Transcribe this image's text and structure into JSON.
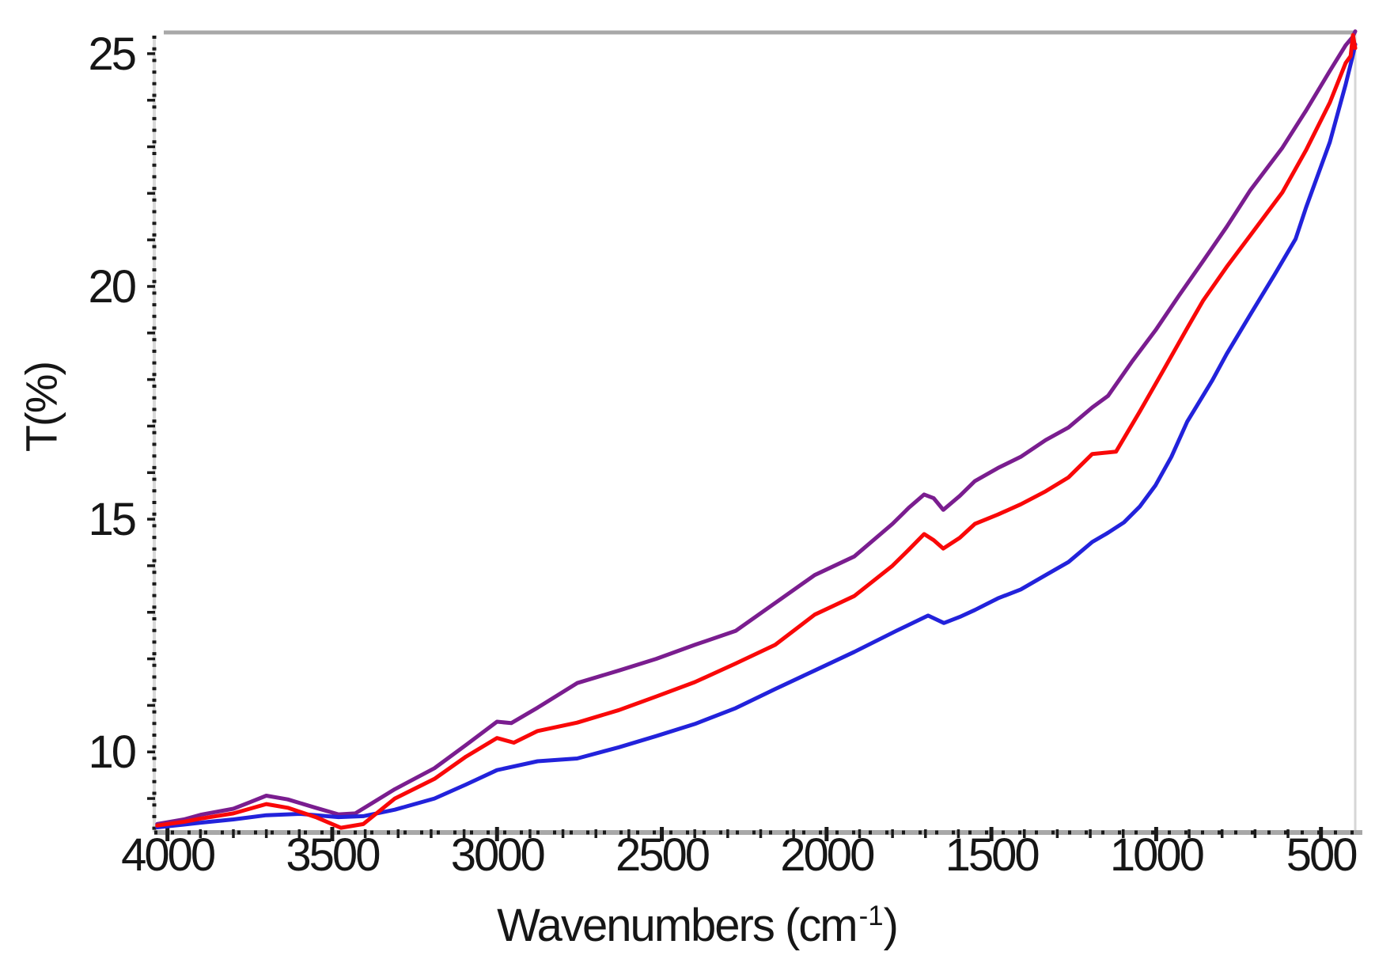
{
  "figure": {
    "x_axis_title": {
      "main": "Wavenumbers (cm",
      "sup": "-1",
      "end": ")"
    },
    "y_axis_title": "T(%)"
  },
  "chart_data": {
    "type": "line",
    "title": "",
    "xlabel": "Wavenumbers (cm⁻¹)",
    "ylabel": "T(%)",
    "legend": "none",
    "grid": false,
    "x_axis": {
      "min": 396,
      "max": 4040,
      "reversed": true,
      "major_ticks": [
        4000,
        3500,
        3000,
        2500,
        2000,
        1500,
        1000,
        500
      ],
      "tick_labels": [
        "4000",
        "3500",
        "3000",
        "2500",
        "2000",
        "1500",
        "1000",
        "500"
      ],
      "minor_tick_step": 100
    },
    "y_axis": {
      "min": 8.27,
      "max": 25.49,
      "major_ticks": [
        25,
        20,
        15,
        10
      ],
      "tick_labels": [
        "25",
        "20",
        "15",
        "10"
      ],
      "unit_tick_step": 1
    },
    "colors": {
      "axis_gray": "#a8a8a8",
      "axis_light": "#d9d9d9",
      "border_light": "#d6d6d6",
      "tick_black": "#1a1a1a",
      "text": "#161616"
    },
    "series": [
      {
        "name": "purple-spectrum",
        "color": "#7A1D8F",
        "points": [
          [
            4031,
            8.45
          ],
          [
            3950,
            8.55
          ],
          [
            3899,
            8.65
          ],
          [
            3800,
            8.78
          ],
          [
            3750,
            8.92
          ],
          [
            3700,
            9.06
          ],
          [
            3635,
            8.98
          ],
          [
            3550,
            8.8
          ],
          [
            3481,
            8.66
          ],
          [
            3430,
            8.68
          ],
          [
            3310,
            9.2
          ],
          [
            3190,
            9.65
          ],
          [
            3094,
            10.15
          ],
          [
            3000,
            10.65
          ],
          [
            2957,
            10.62
          ],
          [
            2877,
            10.95
          ],
          [
            2757,
            11.48
          ],
          [
            2630,
            11.75
          ],
          [
            2517,
            12.0
          ],
          [
            2400,
            12.3
          ],
          [
            2276,
            12.6
          ],
          [
            2156,
            13.2
          ],
          [
            2036,
            13.8
          ],
          [
            1916,
            14.2
          ],
          [
            1800,
            14.9
          ],
          [
            1750,
            15.25
          ],
          [
            1704,
            15.53
          ],
          [
            1675,
            15.45
          ],
          [
            1646,
            15.2
          ],
          [
            1596,
            15.5
          ],
          [
            1550,
            15.82
          ],
          [
            1480,
            16.1
          ],
          [
            1411,
            16.34
          ],
          [
            1335,
            16.7
          ],
          [
            1266,
            16.97
          ],
          [
            1194,
            17.4
          ],
          [
            1146,
            17.65
          ],
          [
            1074,
            18.38
          ],
          [
            1002,
            19.06
          ],
          [
            930,
            19.81
          ],
          [
            858,
            20.54
          ],
          [
            786,
            21.28
          ],
          [
            714,
            22.07
          ],
          [
            617,
            22.98
          ],
          [
            545,
            23.78
          ],
          [
            473,
            24.63
          ],
          [
            425,
            25.18
          ],
          [
            405,
            25.35
          ],
          [
            396,
            25.48
          ]
        ]
      },
      {
        "name": "blue-spectrum",
        "color": "#2222DB",
        "points": [
          [
            4031,
            8.38
          ],
          [
            3950,
            8.44
          ],
          [
            3899,
            8.48
          ],
          [
            3800,
            8.55
          ],
          [
            3700,
            8.64
          ],
          [
            3598,
            8.67
          ],
          [
            3481,
            8.6
          ],
          [
            3406,
            8.62
          ],
          [
            3310,
            8.76
          ],
          [
            3190,
            9.0
          ],
          [
            3094,
            9.3
          ],
          [
            3000,
            9.61
          ],
          [
            2877,
            9.8
          ],
          [
            2757,
            9.86
          ],
          [
            2630,
            10.1
          ],
          [
            2517,
            10.34
          ],
          [
            2400,
            10.6
          ],
          [
            2276,
            10.94
          ],
          [
            2156,
            11.35
          ],
          [
            2036,
            11.75
          ],
          [
            1916,
            12.15
          ],
          [
            1789,
            12.6
          ],
          [
            1692,
            12.93
          ],
          [
            1644,
            12.77
          ],
          [
            1596,
            12.9
          ],
          [
            1550,
            13.05
          ],
          [
            1480,
            13.3
          ],
          [
            1411,
            13.49
          ],
          [
            1335,
            13.8
          ],
          [
            1266,
            14.08
          ],
          [
            1194,
            14.51
          ],
          [
            1146,
            14.71
          ],
          [
            1098,
            14.93
          ],
          [
            1050,
            15.27
          ],
          [
            1002,
            15.73
          ],
          [
            954,
            16.34
          ],
          [
            906,
            17.09
          ],
          [
            858,
            17.65
          ],
          [
            829,
            17.99
          ],
          [
            786,
            18.55
          ],
          [
            714,
            19.4
          ],
          [
            641,
            20.25
          ],
          [
            577,
            21.02
          ],
          [
            545,
            21.7
          ],
          [
            473,
            23.1
          ],
          [
            425,
            24.34
          ],
          [
            402,
            25.0
          ],
          [
            396,
            25.2
          ]
        ]
      },
      {
        "name": "red-spectrum",
        "color": "#F90808",
        "points": [
          [
            4031,
            8.42
          ],
          [
            3950,
            8.5
          ],
          [
            3899,
            8.57
          ],
          [
            3800,
            8.68
          ],
          [
            3750,
            8.78
          ],
          [
            3700,
            8.88
          ],
          [
            3635,
            8.8
          ],
          [
            3550,
            8.6
          ],
          [
            3474,
            8.37
          ],
          [
            3406,
            8.45
          ],
          [
            3310,
            9.0
          ],
          [
            3190,
            9.42
          ],
          [
            3094,
            9.9
          ],
          [
            3000,
            10.3
          ],
          [
            2949,
            10.2
          ],
          [
            2877,
            10.45
          ],
          [
            2757,
            10.63
          ],
          [
            2630,
            10.9
          ],
          [
            2517,
            11.19
          ],
          [
            2400,
            11.5
          ],
          [
            2276,
            11.9
          ],
          [
            2156,
            12.3
          ],
          [
            2036,
            12.95
          ],
          [
            1916,
            13.35
          ],
          [
            1800,
            14.0
          ],
          [
            1750,
            14.35
          ],
          [
            1704,
            14.68
          ],
          [
            1675,
            14.55
          ],
          [
            1646,
            14.37
          ],
          [
            1596,
            14.6
          ],
          [
            1550,
            14.9
          ],
          [
            1480,
            15.1
          ],
          [
            1411,
            15.32
          ],
          [
            1335,
            15.6
          ],
          [
            1266,
            15.9
          ],
          [
            1194,
            16.4
          ],
          [
            1122,
            16.45
          ],
          [
            1050,
            17.31
          ],
          [
            978,
            18.2
          ],
          [
            906,
            19.1
          ],
          [
            858,
            19.69
          ],
          [
            786,
            20.42
          ],
          [
            714,
            21.1
          ],
          [
            617,
            22.02
          ],
          [
            545,
            22.93
          ],
          [
            473,
            23.95
          ],
          [
            425,
            24.8
          ],
          [
            410,
            24.95
          ],
          [
            403,
            25.4
          ],
          [
            396,
            25.12
          ]
        ]
      }
    ]
  }
}
